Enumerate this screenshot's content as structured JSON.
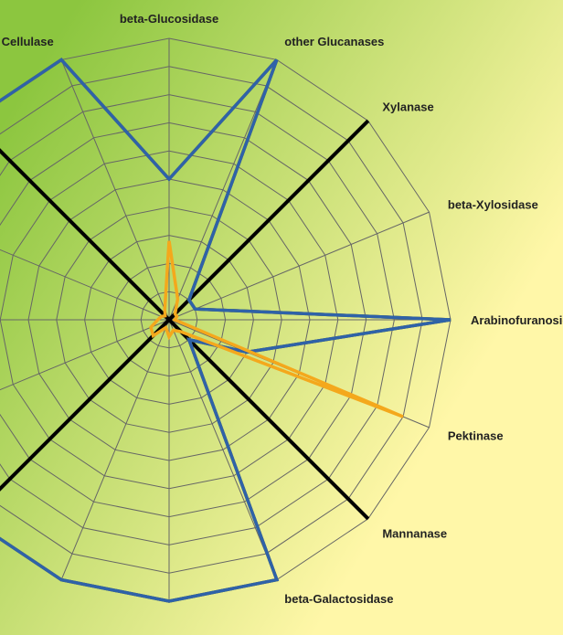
{
  "chart_data": {
    "type": "radar",
    "title": "",
    "axes": [
      "beta-Glucosidase",
      "other Glucanases",
      "Xylanase",
      "beta-Xylosidase",
      "Arabinofuranosidase",
      "Pektinase",
      "Mannanase",
      "beta-Galactosidase",
      "",
      "",
      "",
      "",
      "",
      "",
      "",
      "Cellulase"
    ],
    "rlim": [
      0,
      10
    ],
    "rings": 10,
    "grid": true,
    "series": [
      {
        "color": "#e8432a",
        "values": [
          5.0,
          10.0,
          1.0,
          1.0,
          10.0,
          3.0,
          1.0,
          10.0,
          10.0,
          10.0,
          10.0,
          10.0,
          10.0,
          10.0,
          10.0,
          10.0
        ]
      },
      {
        "color": "#3aa03a",
        "values": [
          5.0,
          10.0,
          1.0,
          1.0,
          10.0,
          3.0,
          1.0,
          10.0,
          10.0,
          10.0,
          10.0,
          10.0,
          10.0,
          10.0,
          10.0,
          10.0
        ]
      },
      {
        "color": "#2f62a8",
        "values": [
          5.0,
          10.0,
          1.0,
          1.0,
          10.0,
          3.0,
          1.0,
          10.0,
          10.0,
          10.0,
          10.0,
          10.0,
          10.0,
          10.0,
          10.0,
          10.0
        ]
      },
      {
        "color": "#f4a81c",
        "values": [
          2.8,
          0.8,
          0.3,
          0.3,
          0.2,
          9.0,
          0.6,
          0.4,
          0.6,
          0.3,
          0.8,
          0.7,
          0.4,
          0.3,
          0.2,
          0.4
        ]
      }
    ],
    "diagonal_color": "#000000"
  },
  "colors": {
    "background_start": "#8cc63f",
    "background_end": "#fff7a8",
    "grid": "#666666"
  }
}
